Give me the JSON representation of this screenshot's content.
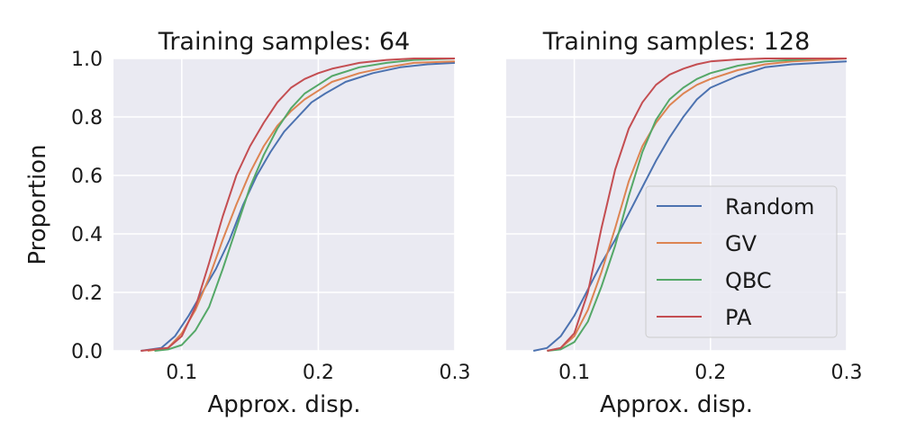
{
  "chart_data": [
    {
      "type": "line",
      "title": "Training samples: 64",
      "xlabel": "Approx. disp.",
      "ylabel": "Proportion",
      "xlim": [
        0.05,
        0.3
      ],
      "ylim": [
        0.0,
        1.0
      ],
      "xticks": [
        "0.1",
        "0.2",
        "0.3"
      ],
      "yticks": [
        "0.0",
        "0.2",
        "0.4",
        "0.6",
        "0.8",
        "1.0"
      ],
      "grid": true,
      "series": [
        {
          "name": "Random",
          "color": "#4c72b0",
          "x": [
            0.07,
            0.085,
            0.095,
            0.105,
            0.115,
            0.125,
            0.135,
            0.145,
            0.155,
            0.165,
            0.175,
            0.185,
            0.195,
            0.205,
            0.22,
            0.24,
            0.26,
            0.28,
            0.3
          ],
          "y": [
            0.0,
            0.01,
            0.05,
            0.12,
            0.2,
            0.28,
            0.38,
            0.5,
            0.6,
            0.68,
            0.75,
            0.8,
            0.85,
            0.88,
            0.92,
            0.95,
            0.97,
            0.98,
            0.985
          ]
        },
        {
          "name": "GV",
          "color": "#dd8452",
          "x": [
            0.075,
            0.09,
            0.1,
            0.11,
            0.12,
            0.13,
            0.14,
            0.15,
            0.16,
            0.17,
            0.18,
            0.19,
            0.2,
            0.21,
            0.23,
            0.25,
            0.27,
            0.3
          ],
          "y": [
            0.0,
            0.01,
            0.06,
            0.14,
            0.25,
            0.38,
            0.5,
            0.61,
            0.7,
            0.77,
            0.82,
            0.86,
            0.89,
            0.92,
            0.95,
            0.97,
            0.985,
            0.99
          ]
        },
        {
          "name": "QBC",
          "color": "#55a868",
          "x": [
            0.08,
            0.09,
            0.1,
            0.11,
            0.12,
            0.13,
            0.14,
            0.15,
            0.16,
            0.17,
            0.18,
            0.19,
            0.2,
            0.21,
            0.23,
            0.25,
            0.27,
            0.3
          ],
          "y": [
            0.0,
            0.005,
            0.02,
            0.07,
            0.15,
            0.28,
            0.42,
            0.56,
            0.67,
            0.76,
            0.83,
            0.88,
            0.91,
            0.94,
            0.97,
            0.985,
            0.995,
            1.0
          ]
        },
        {
          "name": "PA",
          "color": "#c44e52",
          "x": [
            0.07,
            0.09,
            0.1,
            0.11,
            0.12,
            0.13,
            0.14,
            0.15,
            0.16,
            0.17,
            0.18,
            0.19,
            0.2,
            0.21,
            0.23,
            0.25,
            0.27,
            0.3
          ],
          "y": [
            0.0,
            0.01,
            0.05,
            0.15,
            0.3,
            0.46,
            0.6,
            0.7,
            0.78,
            0.85,
            0.9,
            0.93,
            0.95,
            0.965,
            0.985,
            0.995,
            1.0,
            1.0
          ]
        }
      ]
    },
    {
      "type": "line",
      "title": "Training samples: 128",
      "xlabel": "Approx. disp.",
      "ylabel": "",
      "xlim": [
        0.05,
        0.3
      ],
      "ylim": [
        0.0,
        1.0
      ],
      "xticks": [
        "0.1",
        "0.2",
        "0.3"
      ],
      "yticks": [],
      "grid": true,
      "legend": {
        "position": "center-right",
        "entries": [
          "Random",
          "GV",
          "QBC",
          "PA"
        ]
      },
      "series": [
        {
          "name": "Random",
          "color": "#4c72b0",
          "x": [
            0.07,
            0.08,
            0.09,
            0.1,
            0.11,
            0.12,
            0.13,
            0.14,
            0.15,
            0.16,
            0.17,
            0.18,
            0.19,
            0.2,
            0.22,
            0.24,
            0.26,
            0.28,
            0.3
          ],
          "y": [
            0.0,
            0.01,
            0.05,
            0.12,
            0.21,
            0.3,
            0.38,
            0.47,
            0.56,
            0.65,
            0.73,
            0.8,
            0.86,
            0.9,
            0.94,
            0.97,
            0.98,
            0.985,
            0.99
          ]
        },
        {
          "name": "GV",
          "color": "#dd8452",
          "x": [
            0.08,
            0.09,
            0.1,
            0.11,
            0.12,
            0.13,
            0.14,
            0.15,
            0.16,
            0.17,
            0.18,
            0.19,
            0.2,
            0.22,
            0.24,
            0.26,
            0.28,
            0.3
          ],
          "y": [
            0.0,
            0.01,
            0.05,
            0.14,
            0.27,
            0.42,
            0.58,
            0.7,
            0.78,
            0.84,
            0.88,
            0.91,
            0.93,
            0.96,
            0.98,
            0.99,
            0.995,
            1.0
          ]
        },
        {
          "name": "QBC",
          "color": "#55a868",
          "x": [
            0.08,
            0.09,
            0.1,
            0.11,
            0.12,
            0.13,
            0.14,
            0.15,
            0.16,
            0.17,
            0.18,
            0.19,
            0.2,
            0.22,
            0.24,
            0.26,
            0.28,
            0.3
          ],
          "y": [
            0.0,
            0.005,
            0.03,
            0.1,
            0.22,
            0.36,
            0.53,
            0.68,
            0.79,
            0.86,
            0.9,
            0.93,
            0.95,
            0.975,
            0.99,
            0.995,
            1.0,
            1.0
          ]
        },
        {
          "name": "PA",
          "color": "#c44e52",
          "x": [
            0.08,
            0.09,
            0.1,
            0.11,
            0.12,
            0.13,
            0.14,
            0.15,
            0.16,
            0.17,
            0.18,
            0.19,
            0.2,
            0.22,
            0.24,
            0.26,
            0.3
          ],
          "y": [
            0.0,
            0.01,
            0.06,
            0.2,
            0.42,
            0.62,
            0.76,
            0.85,
            0.91,
            0.945,
            0.965,
            0.98,
            0.99,
            0.997,
            1.0,
            1.0,
            1.0
          ]
        }
      ]
    }
  ]
}
